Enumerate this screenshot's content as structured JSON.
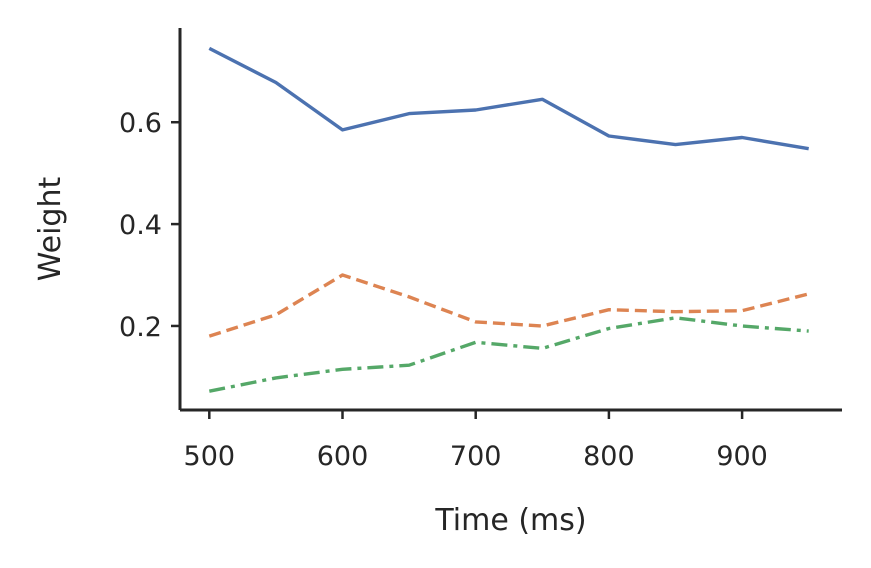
{
  "chart_data": {
    "type": "line",
    "title": "",
    "xlabel": "Time (ms)",
    "ylabel": "Weight",
    "xlim": [
      478,
      975
    ],
    "ylim": [
      0.035,
      0.785
    ],
    "x_ticks": [
      500,
      600,
      700,
      800,
      900
    ],
    "y_ticks": [
      0.2,
      0.4,
      0.6
    ],
    "x_tick_labels": [
      "500",
      "600",
      "700",
      "800",
      "900"
    ],
    "y_tick_labels": [
      "0.2",
      "0.4",
      "0.6"
    ],
    "grid": false,
    "x": [
      500,
      550,
      600,
      650,
      700,
      750,
      800,
      850,
      900,
      950
    ],
    "series": [
      {
        "color": "#4c72b0",
        "line_style": "solid",
        "values": [
          0.745,
          0.678,
          0.585,
          0.617,
          0.624,
          0.645,
          0.573,
          0.556,
          0.57,
          0.548
        ]
      },
      {
        "color": "#dd8452",
        "line_style": "dashed",
        "values": [
          0.18,
          0.222,
          0.3,
          0.257,
          0.208,
          0.2,
          0.232,
          0.228,
          0.23,
          0.263
        ]
      },
      {
        "color": "#55a868",
        "line_style": "dashdot",
        "values": [
          0.072,
          0.098,
          0.115,
          0.123,
          0.168,
          0.156,
          0.195,
          0.216,
          0.2,
          0.19
        ]
      }
    ]
  }
}
